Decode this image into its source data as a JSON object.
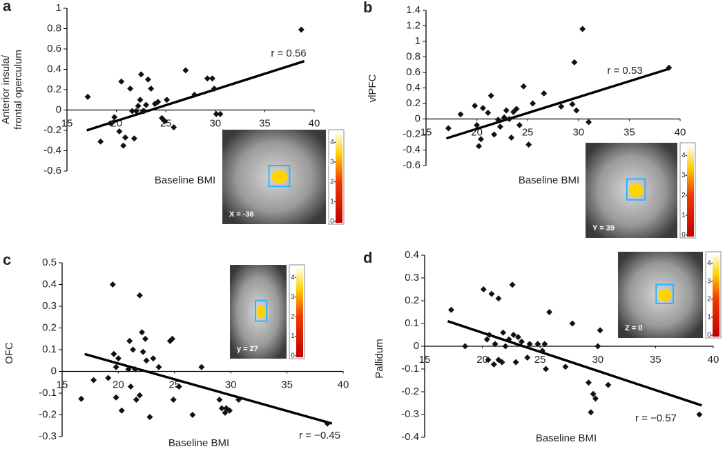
{
  "chart_data": [
    {
      "type": "scatter",
      "panel": "a",
      "ylabel": [
        "Anterior insula/",
        "frontal operculum"
      ],
      "xlabel": "Baseline BMI",
      "annotation": "r = 0.56",
      "color": "#111111",
      "xlim": [
        15,
        40
      ],
      "ylim": [
        -0.6,
        1
      ],
      "xticks": [
        15,
        20,
        25,
        30,
        35,
        40
      ],
      "yticks": [
        -0.6,
        -0.4,
        -0.2,
        0,
        0.2,
        0.4,
        0.6,
        0.8,
        1
      ],
      "x": [
        17.1,
        18.4,
        19.4,
        19.8,
        20.3,
        20.5,
        20.7,
        20.9,
        21.4,
        21.6,
        21.8,
        22.0,
        22.2,
        22.4,
        22.5,
        22.7,
        22.8,
        23.0,
        23.2,
        23.5,
        23.9,
        24.2,
        24.6,
        24.9,
        25.1,
        25.8,
        27.0,
        27.9,
        29.2,
        29.7,
        29.9,
        30.1,
        30.5,
        38.7
      ],
      "y": [
        0.13,
        -0.31,
        -0.13,
        -0.07,
        -0.21,
        0.28,
        -0.35,
        -0.27,
        0.21,
        -0.01,
        -0.28,
        -0.01,
        0.04,
        0.1,
        0.35,
        -0.01,
        -0.01,
        0.05,
        0.3,
        0.21,
        0.06,
        0.08,
        -0.08,
        -0.11,
        0.1,
        -0.17,
        0.39,
        0.15,
        0.31,
        0.31,
        0.21,
        -0.04,
        -0.04,
        0.79
      ],
      "fit": {
        "x": [
          17,
          39
        ],
        "y": [
          -0.2,
          0.48
        ]
      },
      "image_label": "X = -36",
      "colorbar_ticks": [
        0,
        1,
        2,
        3,
        4
      ],
      "colorbar_lim": [
        0,
        4.5
      ]
    },
    {
      "type": "scatter",
      "panel": "b",
      "ylabel": [
        "vlPFC"
      ],
      "xlabel": "Baseline BMI",
      "annotation": "r = 0.53",
      "color": "#111111",
      "xlim": [
        15,
        40
      ],
      "ylim": [
        -0.6,
        1.4
      ],
      "xticks": [
        15,
        20,
        25,
        30,
        35,
        40
      ],
      "yticks": [
        -0.6,
        -0.4,
        -0.2,
        0,
        0.2,
        0.4,
        0.6,
        0.8,
        1,
        1.2,
        1.4
      ],
      "x": [
        17.2,
        18.4,
        19.8,
        20.0,
        20.2,
        20.4,
        20.6,
        21.1,
        21.4,
        21.7,
        22.1,
        22.3,
        22.7,
        22.9,
        23.2,
        23.4,
        23.6,
        23.9,
        24.2,
        24.6,
        25.1,
        25.5,
        26.6,
        28.3,
        29.4,
        29.6,
        30.4,
        29.8,
        31.0,
        38.9
      ],
      "y": [
        -0.12,
        0.06,
        0.17,
        -0.08,
        -0.35,
        -0.26,
        0.14,
        0.08,
        0.3,
        -0.2,
        -0.01,
        -0.1,
        0.02,
        0.11,
        0.0,
        -0.24,
        0.09,
        0.13,
        -0.08,
        0.42,
        -0.33,
        0.2,
        0.33,
        0.16,
        0.19,
        0.73,
        1.16,
        0.11,
        -0.04,
        0.66
      ],
      "fit": {
        "x": [
          17,
          39
        ],
        "y": [
          -0.25,
          0.65
        ]
      },
      "image_label": "Y = 39",
      "colorbar_ticks": [
        0,
        1,
        2,
        3,
        4
      ],
      "colorbar_lim": [
        0,
        4.5
      ]
    },
    {
      "type": "scatter",
      "panel": "c",
      "ylabel": [
        "OFC"
      ],
      "xlabel": "Baseline BMI",
      "annotation": "r = −0.45",
      "color": "#111111",
      "xlim": [
        15,
        40
      ],
      "ylim": [
        -0.3,
        0.5
      ],
      "xticks": [
        15,
        20,
        25,
        30,
        35,
        40
      ],
      "yticks": [
        -0.3,
        -0.2,
        -0.1,
        0,
        0.1,
        0.2,
        0.3,
        0.4,
        0.5
      ],
      "x": [
        16.7,
        17.8,
        19.1,
        19.5,
        19.6,
        19.8,
        20.0,
        19.8,
        20.3,
        20.9,
        21.0,
        21.1,
        21.3,
        21.5,
        21.6,
        21.9,
        21.9,
        22.1,
        22.2,
        22.4,
        22.5,
        22.8,
        23.1,
        23.6,
        24.6,
        24.8,
        25.4,
        24.9,
        26.6,
        27.4,
        29.0,
        29.2,
        29.5,
        29.6,
        29.9,
        30.7,
        38.6
      ],
      "y": [
        -0.126,
        -0.04,
        -0.03,
        0.4,
        0.08,
        0.02,
        0.06,
        -0.12,
        -0.18,
        0.01,
        0.14,
        -0.07,
        0.1,
        0.01,
        -0.13,
        -0.11,
        0.35,
        0.18,
        0.09,
        0.15,
        0.05,
        -0.21,
        0.06,
        0.02,
        0.14,
        0.15,
        -0.07,
        -0.13,
        -0.2,
        0.02,
        -0.13,
        -0.17,
        -0.19,
        -0.17,
        -0.18,
        -0.13,
        -0.24
      ],
      "fit": {
        "x": [
          17,
          39
        ],
        "y": [
          0.08,
          -0.24
        ]
      },
      "image_label": "y = 27",
      "colorbar_ticks": [
        0,
        1,
        2,
        3,
        4
      ],
      "colorbar_lim": [
        0,
        4.5
      ]
    },
    {
      "type": "scatter",
      "panel": "d",
      "ylabel": [
        "Pallidum"
      ],
      "xlabel": "Baseline BMI",
      "annotation": "r = −0.57",
      "color": "#111111",
      "xlim": [
        15,
        40
      ],
      "ylim": [
        -0.4,
        0.4
      ],
      "xticks": [
        15,
        20,
        25,
        30,
        35,
        40
      ],
      "yticks": [
        -0.4,
        -0.3,
        -0.2,
        -0.1,
        0,
        0.1,
        0.2,
        0.3,
        0.4
      ],
      "x": [
        17.3,
        18.5,
        20.1,
        20.4,
        20.5,
        20.6,
        20.8,
        21.0,
        21.1,
        21.4,
        21.4,
        21.7,
        21.8,
        22.0,
        22.3,
        22.6,
        22.7,
        22.9,
        23.1,
        23.4,
        23.9,
        24.1,
        24.8,
        25.2,
        25.4,
        25.5,
        25.8,
        27.2,
        27.8,
        29.2,
        29.6,
        29.8,
        29.4,
        30.2,
        30.0,
        30.9,
        38.8
      ],
      "y": [
        0.16,
        0.0,
        0.25,
        0.03,
        -0.06,
        0.05,
        0.23,
        -0.08,
        0.01,
        0.21,
        -0.06,
        -0.07,
        0.06,
        0.0,
        0.03,
        0.27,
        0.05,
        -0.07,
        0.04,
        0.02,
        -0.05,
        0.01,
        0.01,
        -0.02,
        0.01,
        -0.1,
        0.15,
        -0.09,
        0.1,
        -0.16,
        -0.21,
        -0.23,
        -0.29,
        0.07,
        0.0,
        -0.17,
        -0.3
      ],
      "fit": {
        "x": [
          17,
          39
        ],
        "y": [
          0.11,
          -0.26
        ]
      },
      "image_label": "Z = 0",
      "colorbar_ticks": [
        0,
        1,
        2,
        3,
        4
      ],
      "colorbar_lim": [
        0,
        4.5
      ]
    }
  ]
}
